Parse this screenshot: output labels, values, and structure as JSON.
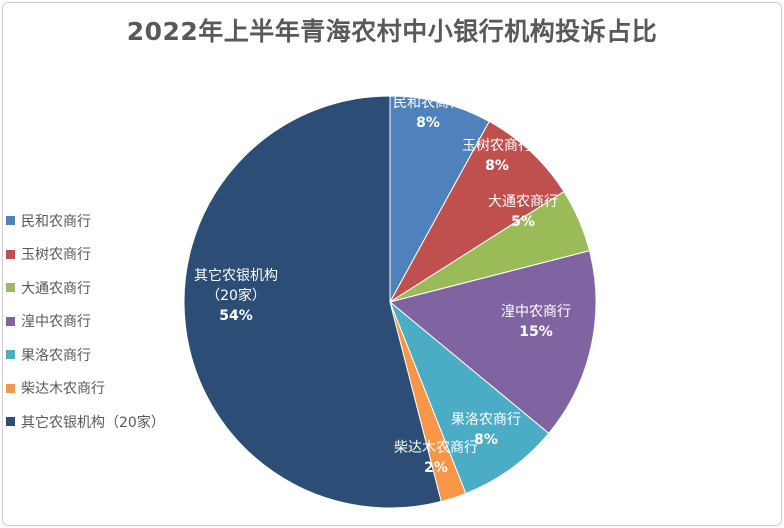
{
  "chart_data": {
    "type": "pie",
    "title": "2022年上半年青海农村中小银行机构投诉占比",
    "legend_position": "left",
    "slices": [
      {
        "name": "民和农商行",
        "value": 8,
        "value_label": "8%",
        "label_lines": [
          "民和农商行"
        ],
        "color": "#4f81bd"
      },
      {
        "name": "玉树农商行",
        "value": 8,
        "value_label": "8%",
        "label_lines": [
          "玉树农商行"
        ],
        "color": "#c0504d"
      },
      {
        "name": "大通农商行",
        "value": 5,
        "value_label": "5%",
        "label_lines": [
          "大通农商行"
        ],
        "color": "#9bbb59"
      },
      {
        "name": "湟中农商行",
        "value": 15,
        "value_label": "15%",
        "label_lines": [
          "湟中农商行"
        ],
        "color": "#8064a2"
      },
      {
        "name": "果洛农商行",
        "value": 8,
        "value_label": "8%",
        "label_lines": [
          "果洛农商行"
        ],
        "color": "#4bacc6"
      },
      {
        "name": "柴达木农商行",
        "value": 2,
        "value_label": "2%",
        "label_lines": [
          "柴达木农商行"
        ],
        "color": "#f79646"
      },
      {
        "name": "其它农银机构（20家）",
        "value": 54,
        "value_label": "54%",
        "label_lines": [
          "其它农银机构",
          "（20家）"
        ],
        "color": "#2c4d75"
      }
    ]
  }
}
